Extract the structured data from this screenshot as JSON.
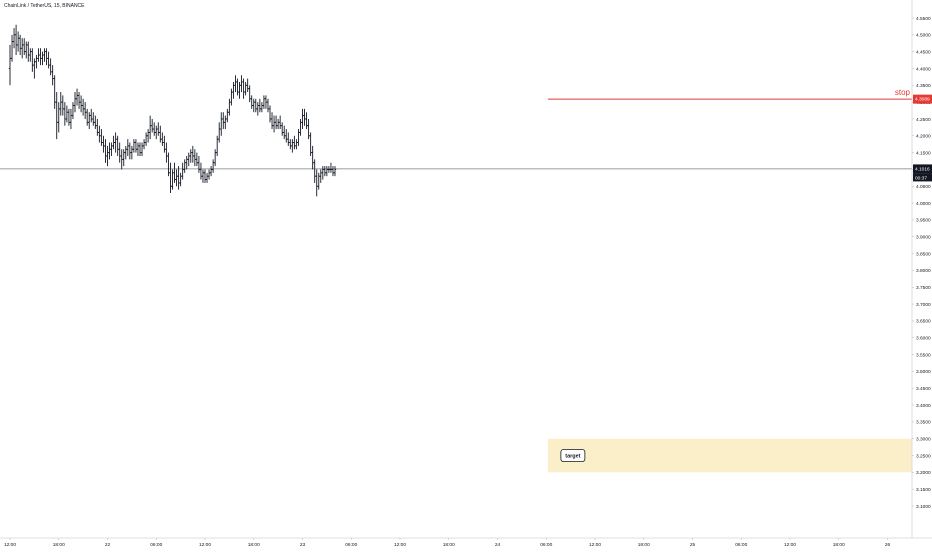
{
  "header": {
    "symbol": "ChainLink / TetherUS, 15, BINANCE"
  },
  "chart_data": {
    "type": "ohlc",
    "title": "ChainLink / TetherUS, 15, BINANCE",
    "ylim": [
      3.1,
      4.55
    ],
    "y_ticks": [
      "4.5500",
      "4.5000",
      "4.4500",
      "4.4000",
      "4.3500",
      "4.3000",
      "4.2500",
      "4.2000",
      "4.1500",
      "4.1000",
      "4.0500",
      "4.0000",
      "3.9500",
      "3.9000",
      "3.8500",
      "3.8000",
      "3.7500",
      "3.7000",
      "3.6500",
      "3.6000",
      "3.5500",
      "3.5000",
      "3.4500",
      "3.4000",
      "3.3500",
      "3.3000",
      "3.2500",
      "3.2000",
      "3.1500",
      "3.1000"
    ],
    "x_ticks": [
      "12:00",
      "18:00",
      "22",
      "06:00",
      "12:00",
      "18:00",
      "23",
      "06:00",
      "12:00",
      "18:00",
      "24",
      "06:00",
      "12:00",
      "18:00",
      "25",
      "06:00",
      "12:00",
      "18:00",
      "26"
    ],
    "x_tick_t": [
      0,
      6,
      12,
      18,
      24,
      30,
      36,
      42,
      48,
      54,
      60,
      66,
      72,
      78,
      84,
      90,
      96,
      102,
      108
    ],
    "last_price": {
      "value": 4.1016,
      "label": "4.1016",
      "countdown": "00:37"
    },
    "stop_level": {
      "value": 4.3089,
      "label": "4.3089",
      "text": "stop",
      "from_t": 66.2
    },
    "target_zone": {
      "high": 3.3,
      "low": 3.2,
      "from_t": 66.2,
      "label": "target"
    },
    "bars": [
      [
        0.0,
        4.4,
        4.47,
        4.35,
        4.43
      ],
      [
        0.25,
        4.43,
        4.5,
        4.42,
        4.48
      ],
      [
        0.5,
        4.48,
        4.52,
        4.46,
        4.5
      ],
      [
        0.75,
        4.5,
        4.53,
        4.44,
        4.47
      ],
      [
        1.0,
        4.47,
        4.51,
        4.45,
        4.49
      ],
      [
        1.25,
        4.49,
        4.5,
        4.44,
        4.46
      ],
      [
        1.5,
        4.46,
        4.49,
        4.43,
        4.47
      ],
      [
        1.75,
        4.47,
        4.49,
        4.44,
        4.45
      ],
      [
        2.0,
        4.45,
        4.48,
        4.43,
        4.47
      ],
      [
        2.25,
        4.47,
        4.48,
        4.42,
        4.44
      ],
      [
        2.5,
        4.44,
        4.46,
        4.42,
        4.45
      ],
      [
        2.75,
        4.45,
        4.46,
        4.39,
        4.41
      ],
      [
        3.0,
        4.41,
        4.43,
        4.37,
        4.42
      ],
      [
        3.25,
        4.42,
        4.44,
        4.4,
        4.43
      ],
      [
        3.5,
        4.43,
        4.46,
        4.42,
        4.44
      ],
      [
        3.75,
        4.44,
        4.46,
        4.41,
        4.43
      ],
      [
        4.0,
        4.43,
        4.45,
        4.41,
        4.44
      ],
      [
        4.25,
        4.44,
        4.46,
        4.42,
        4.45
      ],
      [
        4.5,
        4.45,
        4.46,
        4.41,
        4.43
      ],
      [
        4.75,
        4.43,
        4.45,
        4.4,
        4.41
      ],
      [
        5.0,
        4.41,
        4.43,
        4.38,
        4.39
      ],
      [
        5.25,
        4.39,
        4.41,
        4.35,
        4.37
      ],
      [
        5.5,
        4.37,
        4.38,
        4.28,
        4.3
      ],
      [
        5.75,
        4.3,
        4.33,
        4.19,
        4.24
      ],
      [
        6.0,
        4.24,
        4.3,
        4.21,
        4.28
      ],
      [
        6.25,
        4.28,
        4.33,
        4.26,
        4.3
      ],
      [
        6.5,
        4.3,
        4.32,
        4.26,
        4.28
      ],
      [
        6.75,
        4.28,
        4.3,
        4.23,
        4.25
      ],
      [
        7.0,
        4.25,
        4.29,
        4.24,
        4.27
      ],
      [
        7.25,
        4.27,
        4.28,
        4.23,
        4.24
      ],
      [
        7.5,
        4.24,
        4.28,
        4.22,
        4.26
      ],
      [
        7.75,
        4.26,
        4.3,
        4.25,
        4.29
      ],
      [
        8.0,
        4.29,
        4.33,
        4.27,
        4.31
      ],
      [
        8.25,
        4.31,
        4.34,
        4.29,
        4.32
      ],
      [
        8.5,
        4.32,
        4.33,
        4.28,
        4.3
      ],
      [
        8.75,
        4.3,
        4.32,
        4.27,
        4.29
      ],
      [
        9.0,
        4.29,
        4.31,
        4.26,
        4.28
      ],
      [
        9.25,
        4.28,
        4.3,
        4.25,
        4.27
      ],
      [
        9.5,
        4.27,
        4.28,
        4.23,
        4.24
      ],
      [
        9.75,
        4.24,
        4.27,
        4.22,
        4.26
      ],
      [
        10.0,
        4.26,
        4.28,
        4.24,
        4.25
      ],
      [
        10.25,
        4.25,
        4.27,
        4.23,
        4.24
      ],
      [
        10.5,
        4.24,
        4.26,
        4.22,
        4.23
      ],
      [
        10.75,
        4.23,
        4.25,
        4.2,
        4.21
      ],
      [
        11.0,
        4.21,
        4.23,
        4.18,
        4.2
      ],
      [
        11.25,
        4.2,
        4.22,
        4.17,
        4.18
      ],
      [
        11.5,
        4.18,
        4.2,
        4.15,
        4.17
      ],
      [
        11.75,
        4.17,
        4.19,
        4.12,
        4.14
      ],
      [
        12.0,
        4.14,
        4.17,
        4.11,
        4.15
      ],
      [
        12.25,
        4.15,
        4.18,
        4.13,
        4.16
      ],
      [
        12.5,
        4.16,
        4.18,
        4.14,
        4.17
      ],
      [
        12.75,
        4.17,
        4.2,
        4.16,
        4.18
      ],
      [
        13.0,
        4.18,
        4.21,
        4.15,
        4.19
      ],
      [
        13.25,
        4.19,
        4.2,
        4.14,
        4.16
      ],
      [
        13.5,
        4.16,
        4.18,
        4.12,
        4.14
      ],
      [
        13.75,
        4.14,
        4.16,
        4.1,
        4.13
      ],
      [
        14.0,
        4.13,
        4.16,
        4.11,
        4.15
      ],
      [
        14.25,
        4.15,
        4.17,
        4.13,
        4.16
      ],
      [
        14.5,
        4.16,
        4.19,
        4.14,
        4.17
      ],
      [
        14.75,
        4.17,
        4.18,
        4.13,
        4.15
      ],
      [
        15.0,
        4.15,
        4.17,
        4.13,
        4.16
      ],
      [
        15.25,
        4.16,
        4.19,
        4.15,
        4.18
      ],
      [
        15.5,
        4.18,
        4.19,
        4.15,
        4.16
      ],
      [
        15.75,
        4.16,
        4.18,
        4.14,
        4.17
      ],
      [
        16.0,
        4.17,
        4.18,
        4.14,
        4.15
      ],
      [
        16.25,
        4.15,
        4.18,
        4.14,
        4.17
      ],
      [
        16.5,
        4.17,
        4.19,
        4.16,
        4.18
      ],
      [
        16.75,
        4.18,
        4.21,
        4.17,
        4.2
      ],
      [
        17.0,
        4.2,
        4.22,
        4.18,
        4.21
      ],
      [
        17.25,
        4.21,
        4.26,
        4.19,
        4.23
      ],
      [
        17.5,
        4.23,
        4.25,
        4.21,
        4.22
      ],
      [
        17.75,
        4.22,
        4.24,
        4.2,
        4.21
      ],
      [
        18.0,
        4.21,
        4.23,
        4.19,
        4.22
      ],
      [
        18.25,
        4.22,
        4.24,
        4.2,
        4.21
      ],
      [
        18.5,
        4.21,
        4.23,
        4.18,
        4.19
      ],
      [
        18.75,
        4.19,
        4.21,
        4.17,
        4.18
      ],
      [
        19.0,
        4.18,
        4.2,
        4.15,
        4.16
      ],
      [
        19.25,
        4.16,
        4.18,
        4.12,
        4.14
      ],
      [
        19.5,
        4.14,
        4.15,
        4.08,
        4.09
      ],
      [
        19.75,
        4.09,
        4.12,
        4.03,
        4.05
      ],
      [
        20.0,
        4.05,
        4.1,
        4.04,
        4.09
      ],
      [
        20.25,
        4.09,
        4.12,
        4.06,
        4.07
      ],
      [
        20.5,
        4.07,
        4.1,
        4.05,
        4.08
      ],
      [
        20.75,
        4.08,
        4.11,
        4.04,
        4.06
      ],
      [
        21.0,
        4.06,
        4.09,
        4.05,
        4.08
      ],
      [
        21.25,
        4.08,
        4.12,
        4.07,
        4.1
      ],
      [
        21.5,
        4.1,
        4.13,
        4.09,
        4.12
      ],
      [
        21.75,
        4.12,
        4.14,
        4.1,
        4.13
      ],
      [
        22.0,
        4.13,
        4.15,
        4.11,
        4.14
      ],
      [
        22.25,
        4.14,
        4.16,
        4.12,
        4.15
      ],
      [
        22.5,
        4.15,
        4.17,
        4.12,
        4.14
      ],
      [
        22.75,
        4.14,
        4.16,
        4.11,
        4.13
      ],
      [
        23.0,
        4.13,
        4.15,
        4.11,
        4.12
      ],
      [
        23.25,
        4.12,
        4.14,
        4.09,
        4.1
      ],
      [
        23.5,
        4.1,
        4.12,
        4.07,
        4.08
      ],
      [
        23.75,
        4.08,
        4.1,
        4.06,
        4.09
      ],
      [
        24.0,
        4.09,
        4.1,
        4.06,
        4.07
      ],
      [
        24.25,
        4.07,
        4.09,
        4.06,
        4.08
      ],
      [
        24.5,
        4.08,
        4.1,
        4.07,
        4.09
      ],
      [
        24.75,
        4.09,
        4.11,
        4.08,
        4.1
      ],
      [
        25.0,
        4.1,
        4.13,
        4.09,
        4.12
      ],
      [
        25.25,
        4.12,
        4.16,
        4.11,
        4.15
      ],
      [
        25.5,
        4.15,
        4.2,
        4.14,
        4.19
      ],
      [
        25.75,
        4.19,
        4.24,
        4.18,
        4.22
      ],
      [
        26.0,
        4.22,
        4.27,
        4.2,
        4.25
      ],
      [
        26.25,
        4.25,
        4.27,
        4.22,
        4.24
      ],
      [
        26.5,
        4.24,
        4.26,
        4.22,
        4.25
      ],
      [
        26.75,
        4.25,
        4.28,
        4.24,
        4.27
      ],
      [
        27.0,
        4.27,
        4.31,
        4.26,
        4.3
      ],
      [
        27.25,
        4.3,
        4.34,
        4.29,
        4.33
      ],
      [
        27.5,
        4.33,
        4.36,
        4.31,
        4.35
      ],
      [
        27.75,
        4.35,
        4.38,
        4.33,
        4.36
      ],
      [
        28.0,
        4.36,
        4.37,
        4.32,
        4.33
      ],
      [
        28.25,
        4.33,
        4.36,
        4.31,
        4.35
      ],
      [
        28.5,
        4.35,
        4.38,
        4.33,
        4.36
      ],
      [
        28.75,
        4.36,
        4.37,
        4.31,
        4.33
      ],
      [
        29.0,
        4.33,
        4.36,
        4.32,
        4.35
      ],
      [
        29.25,
        4.35,
        4.37,
        4.33,
        4.34
      ],
      [
        29.5,
        4.34,
        4.35,
        4.3,
        4.31
      ],
      [
        29.75,
        4.31,
        4.32,
        4.28,
        4.29
      ],
      [
        30.0,
        4.29,
        4.31,
        4.27,
        4.3
      ],
      [
        30.25,
        4.3,
        4.31,
        4.27,
        4.28
      ],
      [
        30.5,
        4.28,
        4.3,
        4.26,
        4.29
      ],
      [
        30.75,
        4.29,
        4.31,
        4.27,
        4.28
      ],
      [
        31.0,
        4.28,
        4.3,
        4.27,
        4.29
      ],
      [
        31.25,
        4.29,
        4.32,
        4.28,
        4.31
      ],
      [
        31.5,
        4.31,
        4.32,
        4.28,
        4.3
      ],
      [
        31.75,
        4.3,
        4.31,
        4.27,
        4.28
      ],
      [
        32.0,
        4.28,
        4.29,
        4.24,
        4.25
      ],
      [
        32.25,
        4.25,
        4.27,
        4.22,
        4.23
      ],
      [
        32.5,
        4.23,
        4.26,
        4.21,
        4.24
      ],
      [
        32.75,
        4.24,
        4.26,
        4.22,
        4.23
      ],
      [
        33.0,
        4.23,
        4.25,
        4.22,
        4.24
      ],
      [
        33.25,
        4.24,
        4.26,
        4.22,
        4.23
      ],
      [
        33.5,
        4.23,
        4.24,
        4.2,
        4.21
      ],
      [
        33.75,
        4.21,
        4.23,
        4.19,
        4.2
      ],
      [
        34.0,
        4.2,
        4.22,
        4.18,
        4.19
      ],
      [
        34.25,
        4.19,
        4.21,
        4.17,
        4.18
      ],
      [
        34.5,
        4.18,
        4.19,
        4.16,
        4.17
      ],
      [
        34.75,
        4.17,
        4.19,
        4.15,
        4.18
      ],
      [
        35.0,
        4.18,
        4.2,
        4.16,
        4.17
      ],
      [
        35.25,
        4.17,
        4.19,
        4.16,
        4.18
      ],
      [
        35.5,
        4.18,
        4.22,
        4.17,
        4.21
      ],
      [
        35.75,
        4.21,
        4.25,
        4.2,
        4.24
      ],
      [
        36.0,
        4.24,
        4.28,
        4.22,
        4.26
      ],
      [
        36.25,
        4.26,
        4.28,
        4.23,
        4.25
      ],
      [
        36.5,
        4.25,
        4.27,
        4.22,
        4.23
      ],
      [
        36.75,
        4.23,
        4.25,
        4.19,
        4.2
      ],
      [
        37.0,
        4.2,
        4.21,
        4.14,
        4.15
      ],
      [
        37.25,
        4.15,
        4.17,
        4.1,
        4.12
      ],
      [
        37.5,
        4.12,
        4.13,
        4.06,
        4.08
      ],
      [
        37.75,
        4.08,
        4.1,
        4.02,
        4.05
      ],
      [
        38.0,
        4.05,
        4.09,
        4.04,
        4.08
      ],
      [
        38.25,
        4.08,
        4.1,
        4.06,
        4.09
      ],
      [
        38.5,
        4.09,
        4.11,
        4.07,
        4.1
      ],
      [
        38.75,
        4.1,
        4.11,
        4.08,
        4.09
      ],
      [
        39.0,
        4.09,
        4.11,
        4.08,
        4.1
      ],
      [
        39.25,
        4.1,
        4.11,
        4.09,
        4.1
      ],
      [
        39.5,
        4.1,
        4.12,
        4.09,
        4.1
      ],
      [
        39.75,
        4.1,
        4.11,
        4.08,
        4.09
      ],
      [
        40.0,
        4.09,
        4.11,
        4.08,
        4.1
      ]
    ]
  }
}
